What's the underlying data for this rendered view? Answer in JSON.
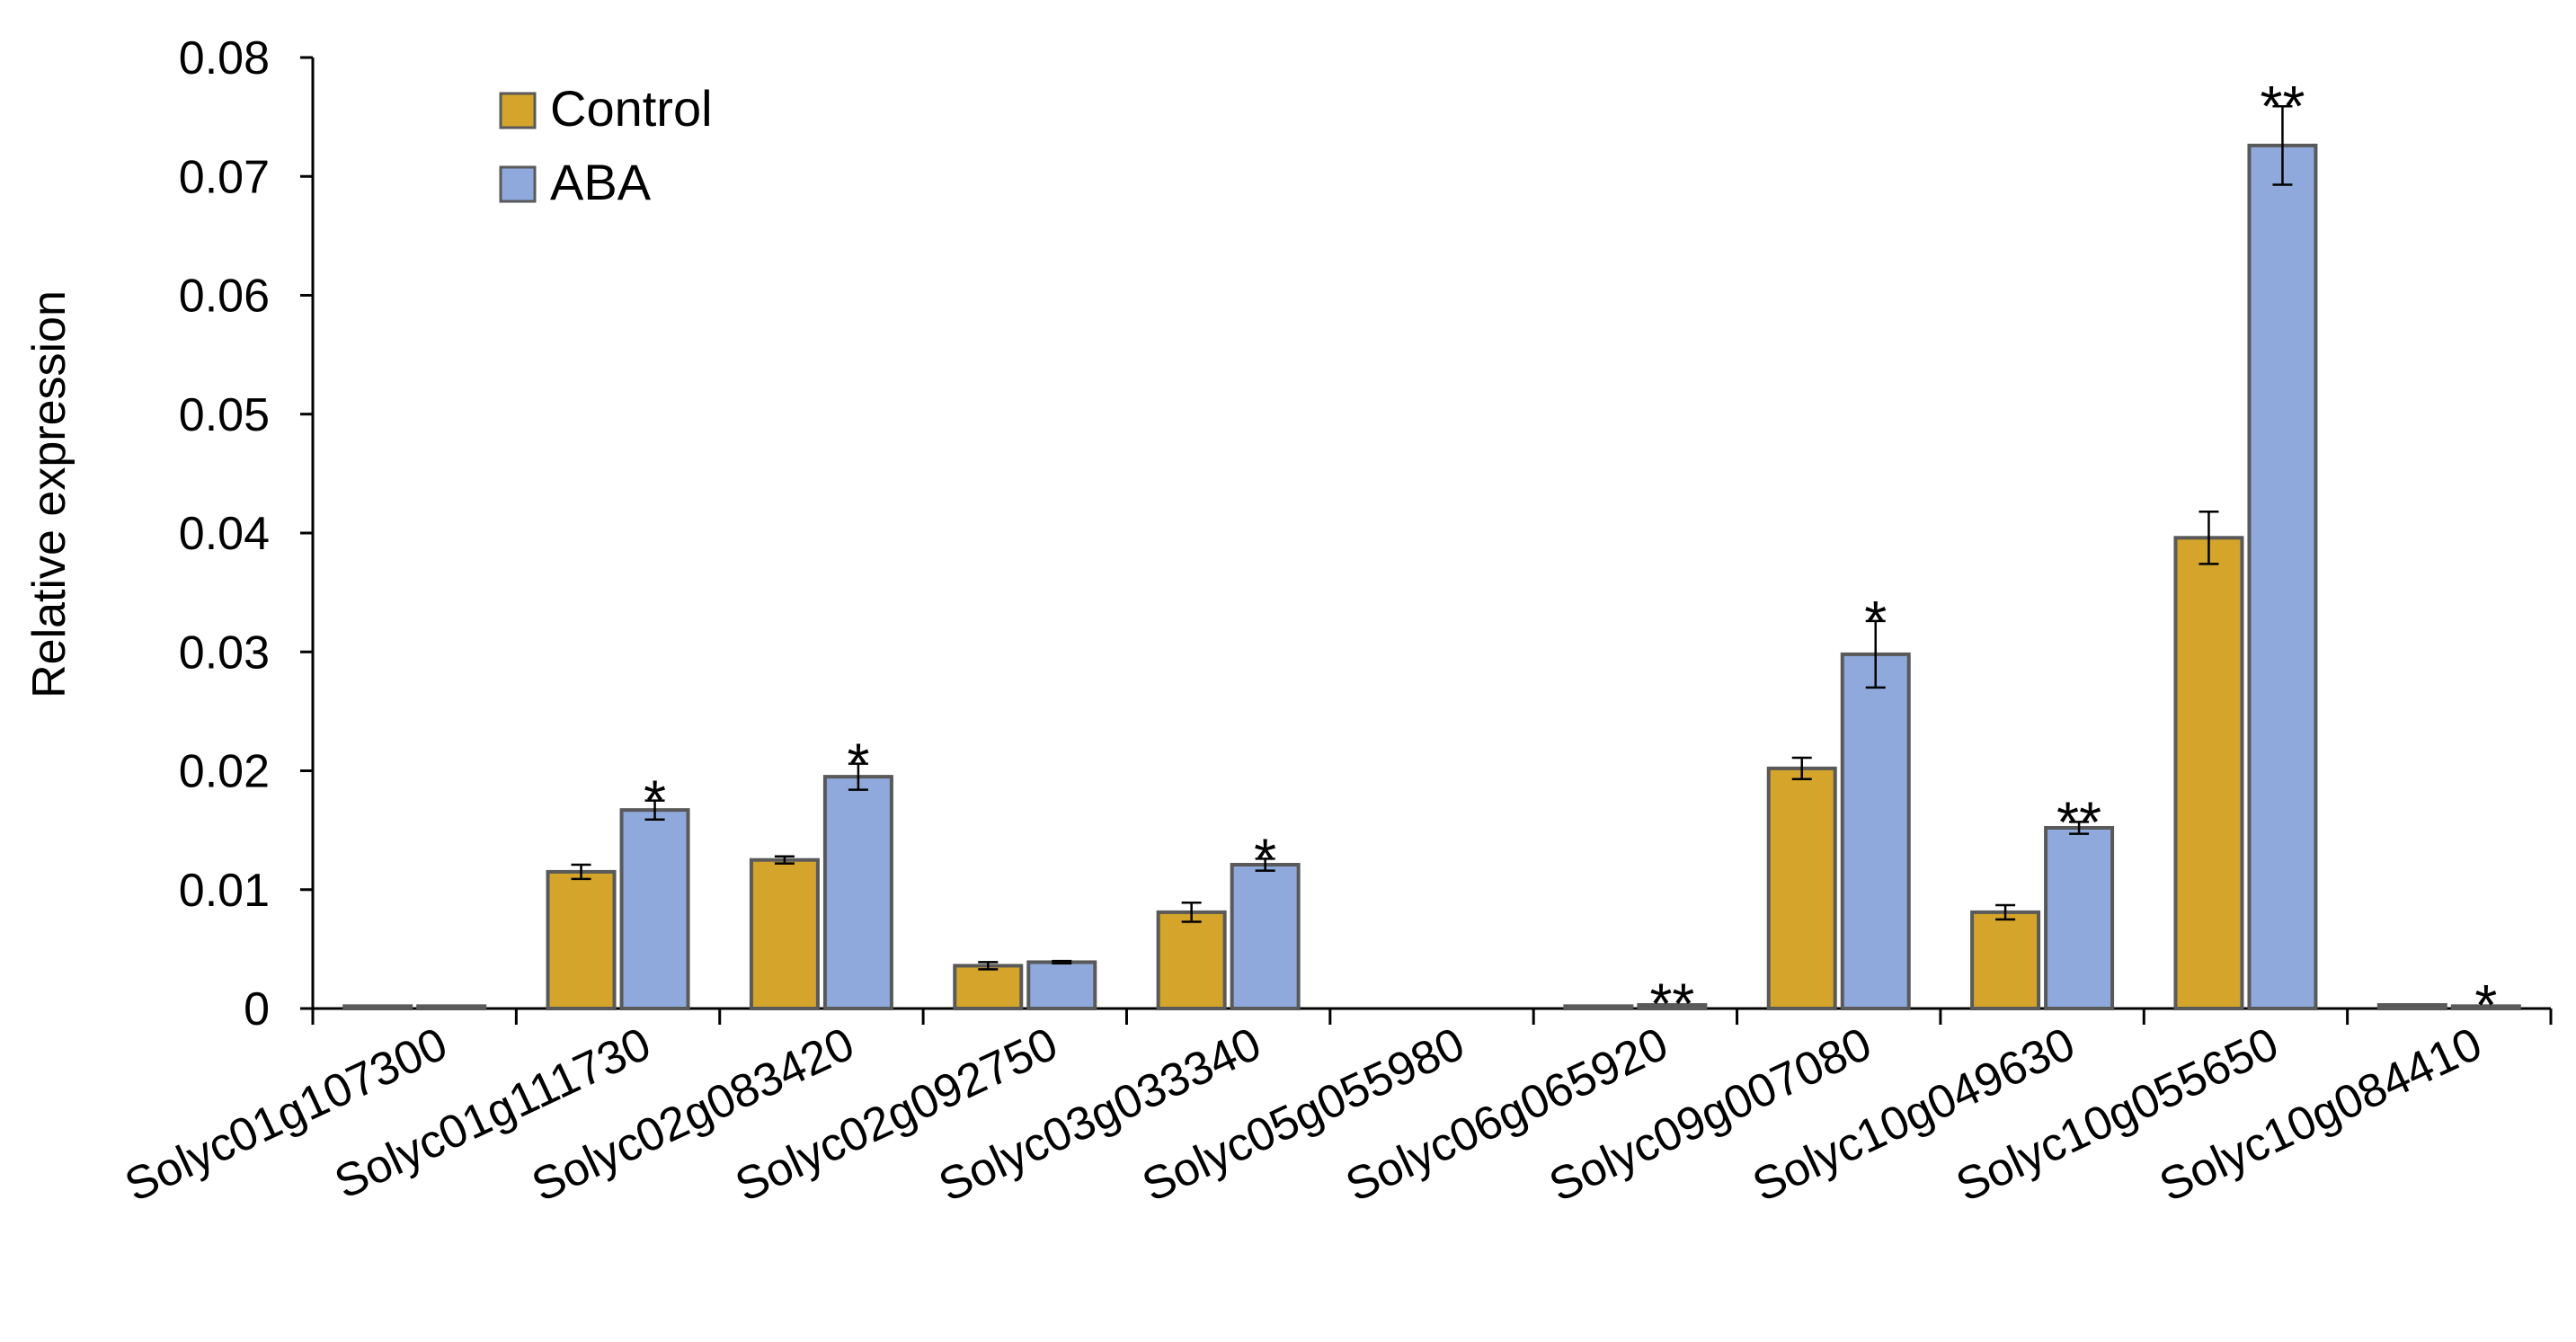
{
  "chart_data": {
    "type": "bar",
    "title": "",
    "xlabel": "",
    "ylabel": "Relative expression",
    "ylim": [
      0,
      0.08
    ],
    "yticks": [
      "0",
      "0.01",
      "0.02",
      "0.03",
      "0.04",
      "0.05",
      "0.06",
      "0.07",
      "0.08"
    ],
    "grid": false,
    "legend_position": "top-left",
    "categories": [
      "Solyc01g107300",
      "Solyc01g111730",
      "Solyc02g083420",
      "Solyc02g092750",
      "Solyc03g033340",
      "Solyc05g055980",
      "Solyc06g065920",
      "Solyc09g007080",
      "Solyc10g049630",
      "Solyc10g055650",
      "Solyc10g084410"
    ],
    "series": [
      {
        "name": "Control",
        "color": "#D4A52A",
        "values": [
          0.0002,
          0.0115,
          0.0125,
          0.0036,
          0.0081,
          0.0,
          0.0002,
          0.0202,
          0.0081,
          0.0396,
          0.0003
        ],
        "errors": [
          0.0001,
          0.0006,
          0.0003,
          0.0003,
          0.0008,
          0.0,
          0.0001,
          0.0009,
          0.0006,
          0.0022,
          0.0001
        ]
      },
      {
        "name": "ABA",
        "color": "#8FA9DC",
        "values": [
          0.0002,
          0.0167,
          0.0195,
          0.0039,
          0.0121,
          0.0,
          0.0003,
          0.0298,
          0.0152,
          0.0726,
          0.0002
        ],
        "errors": [
          0.0001,
          0.0008,
          0.0011,
          0.0001,
          0.0005,
          0.0,
          0.0001,
          0.0028,
          0.0005,
          0.0033,
          0.0001
        ]
      }
    ],
    "significance": [
      "",
      "*",
      "*",
      "",
      "*",
      "",
      "**",
      "*",
      "**",
      "**",
      "*"
    ]
  }
}
